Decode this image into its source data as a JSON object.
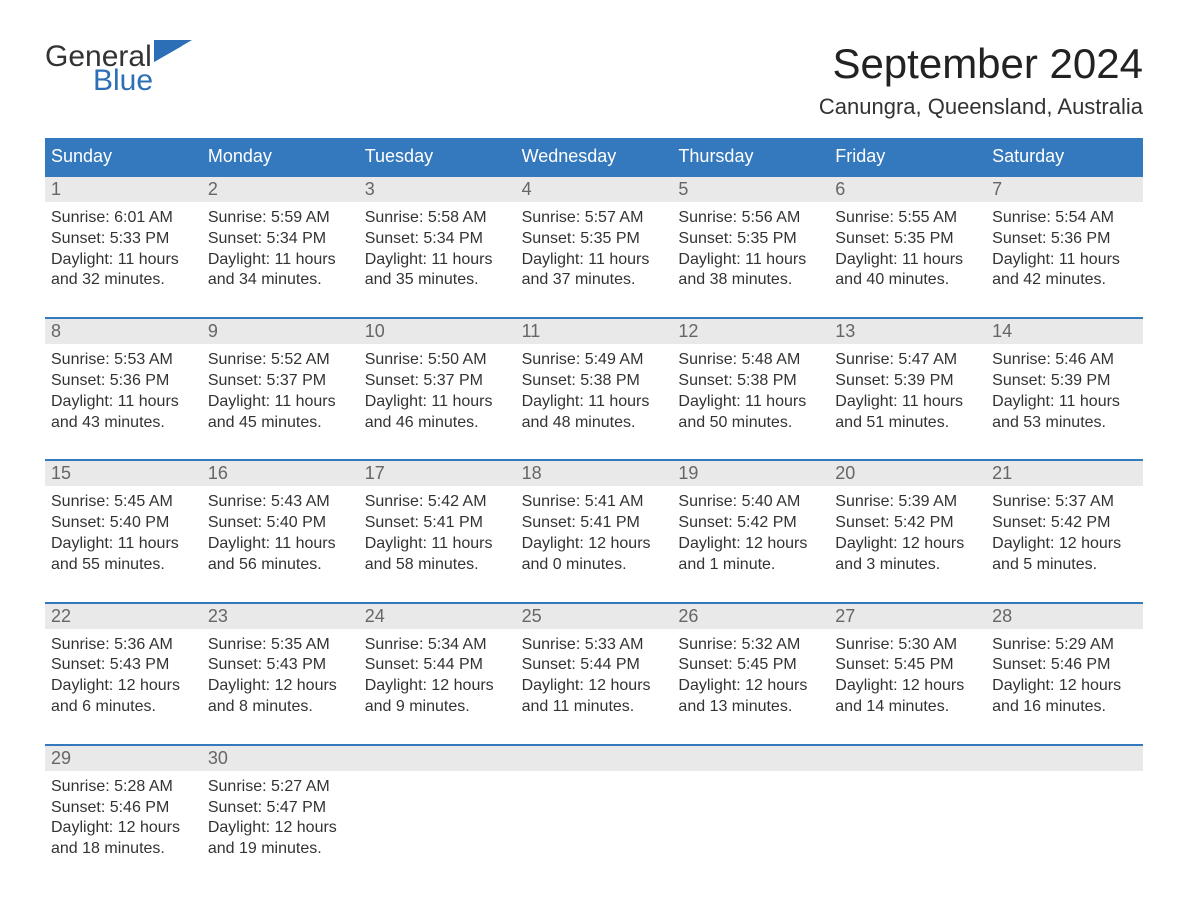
{
  "logo": {
    "word1": "General",
    "word2": "Blue"
  },
  "title": "September 2024",
  "location": "Canungra, Queensland, Australia",
  "colors": {
    "header_bg": "#3478bd",
    "header_text": "#ffffff",
    "daynum_bg": "#e9e9e9",
    "daynum_text": "#666666",
    "border": "#3478bd",
    "body_text": "#333333",
    "logo_blue": "#2d6fb6"
  },
  "weekdays": [
    "Sunday",
    "Monday",
    "Tuesday",
    "Wednesday",
    "Thursday",
    "Friday",
    "Saturday"
  ],
  "weeks": [
    [
      {
        "n": "1",
        "sunrise": "Sunrise: 6:01 AM",
        "sunset": "Sunset: 5:33 PM",
        "daylight": "Daylight: 11 hours and 32 minutes."
      },
      {
        "n": "2",
        "sunrise": "Sunrise: 5:59 AM",
        "sunset": "Sunset: 5:34 PM",
        "daylight": "Daylight: 11 hours and 34 minutes."
      },
      {
        "n": "3",
        "sunrise": "Sunrise: 5:58 AM",
        "sunset": "Sunset: 5:34 PM",
        "daylight": "Daylight: 11 hours and 35 minutes."
      },
      {
        "n": "4",
        "sunrise": "Sunrise: 5:57 AM",
        "sunset": "Sunset: 5:35 PM",
        "daylight": "Daylight: 11 hours and 37 minutes."
      },
      {
        "n": "5",
        "sunrise": "Sunrise: 5:56 AM",
        "sunset": "Sunset: 5:35 PM",
        "daylight": "Daylight: 11 hours and 38 minutes."
      },
      {
        "n": "6",
        "sunrise": "Sunrise: 5:55 AM",
        "sunset": "Sunset: 5:35 PM",
        "daylight": "Daylight: 11 hours and 40 minutes."
      },
      {
        "n": "7",
        "sunrise": "Sunrise: 5:54 AM",
        "sunset": "Sunset: 5:36 PM",
        "daylight": "Daylight: 11 hours and 42 minutes."
      }
    ],
    [
      {
        "n": "8",
        "sunrise": "Sunrise: 5:53 AM",
        "sunset": "Sunset: 5:36 PM",
        "daylight": "Daylight: 11 hours and 43 minutes."
      },
      {
        "n": "9",
        "sunrise": "Sunrise: 5:52 AM",
        "sunset": "Sunset: 5:37 PM",
        "daylight": "Daylight: 11 hours and 45 minutes."
      },
      {
        "n": "10",
        "sunrise": "Sunrise: 5:50 AM",
        "sunset": "Sunset: 5:37 PM",
        "daylight": "Daylight: 11 hours and 46 minutes."
      },
      {
        "n": "11",
        "sunrise": "Sunrise: 5:49 AM",
        "sunset": "Sunset: 5:38 PM",
        "daylight": "Daylight: 11 hours and 48 minutes."
      },
      {
        "n": "12",
        "sunrise": "Sunrise: 5:48 AM",
        "sunset": "Sunset: 5:38 PM",
        "daylight": "Daylight: 11 hours and 50 minutes."
      },
      {
        "n": "13",
        "sunrise": "Sunrise: 5:47 AM",
        "sunset": "Sunset: 5:39 PM",
        "daylight": "Daylight: 11 hours and 51 minutes."
      },
      {
        "n": "14",
        "sunrise": "Sunrise: 5:46 AM",
        "sunset": "Sunset: 5:39 PM",
        "daylight": "Daylight: 11 hours and 53 minutes."
      }
    ],
    [
      {
        "n": "15",
        "sunrise": "Sunrise: 5:45 AM",
        "sunset": "Sunset: 5:40 PM",
        "daylight": "Daylight: 11 hours and 55 minutes."
      },
      {
        "n": "16",
        "sunrise": "Sunrise: 5:43 AM",
        "sunset": "Sunset: 5:40 PM",
        "daylight": "Daylight: 11 hours and 56 minutes."
      },
      {
        "n": "17",
        "sunrise": "Sunrise: 5:42 AM",
        "sunset": "Sunset: 5:41 PM",
        "daylight": "Daylight: 11 hours and 58 minutes."
      },
      {
        "n": "18",
        "sunrise": "Sunrise: 5:41 AM",
        "sunset": "Sunset: 5:41 PM",
        "daylight": "Daylight: 12 hours and 0 minutes."
      },
      {
        "n": "19",
        "sunrise": "Sunrise: 5:40 AM",
        "sunset": "Sunset: 5:42 PM",
        "daylight": "Daylight: 12 hours and 1 minute."
      },
      {
        "n": "20",
        "sunrise": "Sunrise: 5:39 AM",
        "sunset": "Sunset: 5:42 PM",
        "daylight": "Daylight: 12 hours and 3 minutes."
      },
      {
        "n": "21",
        "sunrise": "Sunrise: 5:37 AM",
        "sunset": "Sunset: 5:42 PM",
        "daylight": "Daylight: 12 hours and 5 minutes."
      }
    ],
    [
      {
        "n": "22",
        "sunrise": "Sunrise: 5:36 AM",
        "sunset": "Sunset: 5:43 PM",
        "daylight": "Daylight: 12 hours and 6 minutes."
      },
      {
        "n": "23",
        "sunrise": "Sunrise: 5:35 AM",
        "sunset": "Sunset: 5:43 PM",
        "daylight": "Daylight: 12 hours and 8 minutes."
      },
      {
        "n": "24",
        "sunrise": "Sunrise: 5:34 AM",
        "sunset": "Sunset: 5:44 PM",
        "daylight": "Daylight: 12 hours and 9 minutes."
      },
      {
        "n": "25",
        "sunrise": "Sunrise: 5:33 AM",
        "sunset": "Sunset: 5:44 PM",
        "daylight": "Daylight: 12 hours and 11 minutes."
      },
      {
        "n": "26",
        "sunrise": "Sunrise: 5:32 AM",
        "sunset": "Sunset: 5:45 PM",
        "daylight": "Daylight: 12 hours and 13 minutes."
      },
      {
        "n": "27",
        "sunrise": "Sunrise: 5:30 AM",
        "sunset": "Sunset: 5:45 PM",
        "daylight": "Daylight: 12 hours and 14 minutes."
      },
      {
        "n": "28",
        "sunrise": "Sunrise: 5:29 AM",
        "sunset": "Sunset: 5:46 PM",
        "daylight": "Daylight: 12 hours and 16 minutes."
      }
    ],
    [
      {
        "n": "29",
        "sunrise": "Sunrise: 5:28 AM",
        "sunset": "Sunset: 5:46 PM",
        "daylight": "Daylight: 12 hours and 18 minutes."
      },
      {
        "n": "30",
        "sunrise": "Sunrise: 5:27 AM",
        "sunset": "Sunset: 5:47 PM",
        "daylight": "Daylight: 12 hours and 19 minutes."
      },
      null,
      null,
      null,
      null,
      null
    ]
  ]
}
